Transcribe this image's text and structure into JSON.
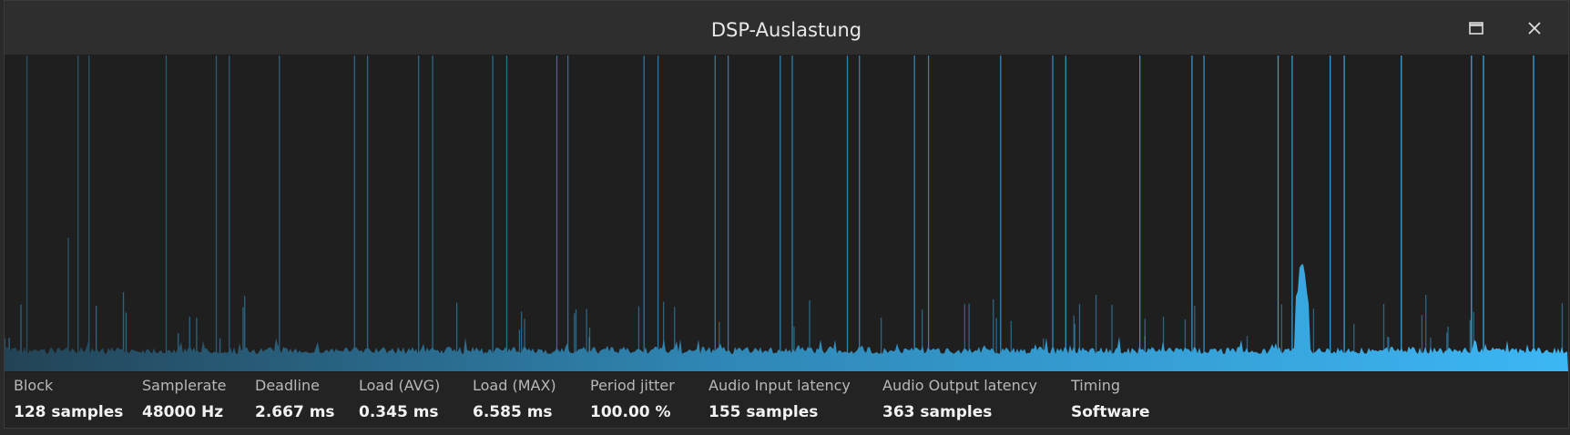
{
  "window": {
    "title": "DSP-Auslastung"
  },
  "stats": [
    {
      "label": "Block",
      "value": "128 samples"
    },
    {
      "label": "Samplerate",
      "value": "48000 Hz"
    },
    {
      "label": "Deadline",
      "value": "2.667 ms"
    },
    {
      "label": "Load (AVG)",
      "value": "0.345 ms"
    },
    {
      "label": "Load (MAX)",
      "value": "6.585 ms"
    },
    {
      "label": "Period jitter",
      "value": "100.00 %"
    },
    {
      "label": "Audio Input latency",
      "value": "155 samples"
    },
    {
      "label": "Audio Output latency",
      "value": "363 samples"
    },
    {
      "label": "Timing",
      "value": "Software"
    }
  ]
}
